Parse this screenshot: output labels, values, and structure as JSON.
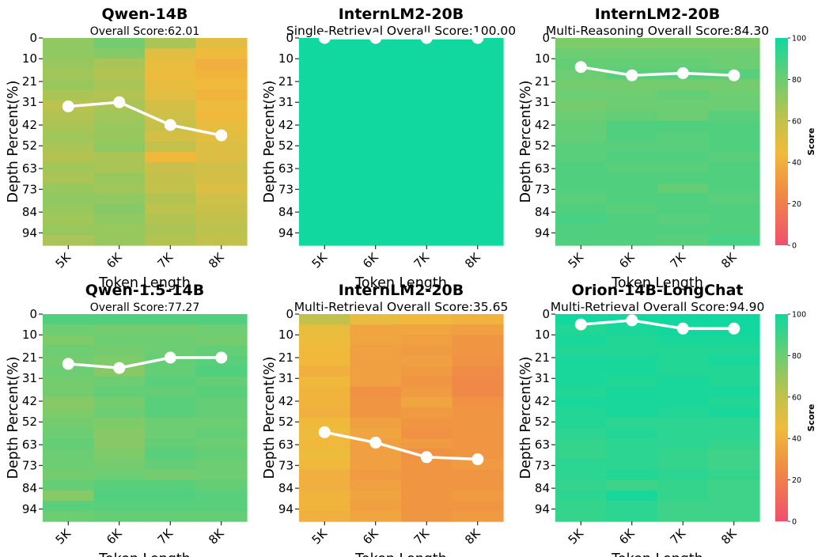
{
  "chart_data": [
    {
      "type": "heatmap",
      "title": "Qwen-14B",
      "subtitle": "Overall Score:62.01",
      "xlabel": "Token Length",
      "ylabel": "Depth Percent(%)",
      "x_categories": [
        "5K",
        "6K",
        "7K",
        "8K"
      ],
      "y_tick_labels": [
        "0",
        "10",
        "21",
        "31",
        "42",
        "52",
        "63",
        "73",
        "84",
        "94"
      ],
      "color_range": [
        0,
        100
      ],
      "line_series": [
        {
          "x": "5K",
          "y_depth": 33,
          "score": 62
        },
        {
          "x": "6K",
          "y_depth": 31,
          "score": 66
        },
        {
          "x": "7K",
          "y_depth": 42,
          "score": 60
        },
        {
          "x": "8K",
          "y_depth": 47,
          "score": 55
        }
      ],
      "cells": [
        [
          72,
          78,
          66,
          50
        ],
        [
          72,
          74,
          50,
          45
        ],
        [
          70,
          66,
          48,
          40
        ],
        [
          68,
          64,
          46,
          42
        ],
        [
          70,
          66,
          48,
          44
        ],
        [
          66,
          64,
          50,
          42
        ],
        [
          62,
          66,
          54,
          46
        ],
        [
          64,
          68,
          56,
          44
        ],
        [
          66,
          70,
          58,
          48
        ],
        [
          68,
          70,
          54,
          50
        ],
        [
          66,
          72,
          60,
          52
        ],
        [
          64,
          66,
          44,
          52
        ],
        [
          68,
          66,
          58,
          56
        ],
        [
          66,
          70,
          60,
          54
        ],
        [
          70,
          68,
          60,
          52
        ],
        [
          72,
          72,
          64,
          56
        ],
        [
          70,
          74,
          62,
          58
        ],
        [
          68,
          72,
          64,
          60
        ],
        [
          70,
          70,
          66,
          62
        ],
        [
          66,
          70,
          64,
          60
        ]
      ]
    },
    {
      "type": "heatmap",
      "title": "InternLM2-20B",
      "subtitle": "Single-Retrieval Overall Score:100.00",
      "xlabel": "Token Length",
      "ylabel": "Depth Percent(%)",
      "x_categories": [
        "5K",
        "6K",
        "7K",
        "8K"
      ],
      "y_tick_labels": [
        "0",
        "10",
        "21",
        "31",
        "42",
        "52",
        "63",
        "73",
        "84",
        "94"
      ],
      "color_range": [
        0,
        100
      ],
      "line_series": [
        {
          "x": "5K",
          "y_depth": 0,
          "score": 100
        },
        {
          "x": "6K",
          "y_depth": 0,
          "score": 100
        },
        {
          "x": "7K",
          "y_depth": 0,
          "score": 100
        },
        {
          "x": "8K",
          "y_depth": 0,
          "score": 100
        }
      ],
      "cells": [
        [
          100,
          100,
          100,
          100
        ],
        [
          100,
          100,
          100,
          100
        ],
        [
          100,
          100,
          100,
          100
        ],
        [
          100,
          100,
          100,
          100
        ],
        [
          100,
          100,
          100,
          100
        ],
        [
          100,
          100,
          100,
          100
        ],
        [
          100,
          100,
          100,
          100
        ],
        [
          100,
          100,
          100,
          100
        ],
        [
          100,
          100,
          100,
          100
        ],
        [
          100,
          100,
          100,
          100
        ],
        [
          100,
          100,
          100,
          100
        ],
        [
          100,
          100,
          100,
          100
        ],
        [
          100,
          100,
          100,
          100
        ],
        [
          100,
          100,
          100,
          100
        ],
        [
          100,
          100,
          100,
          100
        ],
        [
          100,
          100,
          100,
          100
        ],
        [
          100,
          100,
          100,
          100
        ],
        [
          100,
          100,
          100,
          100
        ],
        [
          100,
          100,
          100,
          100
        ],
        [
          100,
          100,
          100,
          100
        ]
      ]
    },
    {
      "type": "heatmap",
      "title": "InternLM2-20B",
      "subtitle": "Multi-Reasoning Overall Score:84.30",
      "xlabel": "Token Length",
      "ylabel": "Depth Percent(%)",
      "x_categories": [
        "5K",
        "6K",
        "7K",
        "8K"
      ],
      "y_tick_labels": [
        "0",
        "10",
        "21",
        "31",
        "42",
        "52",
        "63",
        "73",
        "84",
        "94"
      ],
      "color_range": [
        0,
        100
      ],
      "colorbar": {
        "label": "Score",
        "ticks": [
          0,
          20,
          40,
          60,
          80,
          100
        ]
      },
      "line_series": [
        {
          "x": "5K",
          "y_depth": 14,
          "score": 87
        },
        {
          "x": "6K",
          "y_depth": 18,
          "score": 83
        },
        {
          "x": "7K",
          "y_depth": 17,
          "score": 84
        },
        {
          "x": "8K",
          "y_depth": 18,
          "score": 83
        }
      ],
      "cells": [
        [
          76,
          76,
          76,
          76
        ],
        [
          80,
          80,
          80,
          80
        ],
        [
          82,
          82,
          82,
          80
        ],
        [
          80,
          84,
          84,
          84
        ],
        [
          78,
          78,
          78,
          78
        ],
        [
          80,
          80,
          82,
          80
        ],
        [
          78,
          80,
          80,
          80
        ],
        [
          80,
          82,
          80,
          84
        ],
        [
          82,
          86,
          86,
          86
        ],
        [
          82,
          86,
          84,
          86
        ],
        [
          84,
          84,
          84,
          86
        ],
        [
          84,
          86,
          86,
          84
        ],
        [
          86,
          84,
          84,
          86
        ],
        [
          86,
          86,
          86,
          86
        ],
        [
          86,
          86,
          82,
          86
        ],
        [
          84,
          86,
          86,
          84
        ],
        [
          86,
          84,
          86,
          86
        ],
        [
          88,
          86,
          84,
          86
        ],
        [
          86,
          86,
          86,
          86
        ],
        [
          86,
          86,
          84,
          88
        ]
      ]
    },
    {
      "type": "heatmap",
      "title": "Qwen-1.5-14B",
      "subtitle": "Overall Score:77.27",
      "xlabel": "Token Length",
      "ylabel": "Depth Percent(%)",
      "x_categories": [
        "5K",
        "6K",
        "7K",
        "8K"
      ],
      "y_tick_labels": [
        "0",
        "10",
        "21",
        "31",
        "42",
        "52",
        "63",
        "73",
        "84",
        "94"
      ],
      "color_range": [
        0,
        100
      ],
      "line_series": [
        {
          "x": "5K",
          "y_depth": 24,
          "score": 77
        },
        {
          "x": "6K",
          "y_depth": 26,
          "score": 75
        },
        {
          "x": "7K",
          "y_depth": 21,
          "score": 79
        },
        {
          "x": "8K",
          "y_depth": 21,
          "score": 79
        }
      ],
      "cells": [
        [
          86,
          86,
          86,
          86
        ],
        [
          80,
          78,
          78,
          80
        ],
        [
          76,
          80,
          80,
          78
        ],
        [
          80,
          78,
          80,
          82
        ],
        [
          78,
          76,
          82,
          84
        ],
        [
          80,
          74,
          82,
          86
        ],
        [
          78,
          80,
          84,
          82
        ],
        [
          78,
          82,
          82,
          84
        ],
        [
          74,
          78,
          84,
          82
        ],
        [
          76,
          80,
          84,
          82
        ],
        [
          78,
          76,
          80,
          80
        ],
        [
          80,
          74,
          80,
          82
        ],
        [
          82,
          74,
          82,
          80
        ],
        [
          80,
          76,
          84,
          82
        ],
        [
          80,
          78,
          82,
          80
        ],
        [
          78,
          80,
          78,
          80
        ],
        [
          82,
          84,
          84,
          82
        ],
        [
          74,
          86,
          86,
          84
        ],
        [
          84,
          84,
          84,
          84
        ],
        [
          80,
          82,
          82,
          82
        ]
      ]
    },
    {
      "type": "heatmap",
      "title": "InternLM2-20B",
      "subtitle": "Multi-Retrieval Overall Score:35.65",
      "xlabel": "Token Length",
      "ylabel": "Depth Percent(%)",
      "x_categories": [
        "5K",
        "6K",
        "7K",
        "8K"
      ],
      "y_tick_labels": [
        "0",
        "10",
        "21",
        "31",
        "42",
        "52",
        "63",
        "73",
        "84",
        "94"
      ],
      "color_range": [
        0,
        100
      ],
      "line_series": [
        {
          "x": "5K",
          "y_depth": 57,
          "score": 42
        },
        {
          "x": "6K",
          "y_depth": 62,
          "score": 38
        },
        {
          "x": "7K",
          "y_depth": 69,
          "score": 32
        },
        {
          "x": "8K",
          "y_depth": 70,
          "score": 31
        }
      ],
      "cells": [
        [
          60,
          48,
          44,
          42
        ],
        [
          48,
          36,
          36,
          34
        ],
        [
          46,
          36,
          34,
          30
        ],
        [
          44,
          34,
          32,
          30
        ],
        [
          44,
          34,
          34,
          28
        ],
        [
          40,
          34,
          32,
          26
        ],
        [
          44,
          34,
          30,
          24
        ],
        [
          42,
          28,
          32,
          24
        ],
        [
          42,
          30,
          36,
          28
        ],
        [
          40,
          30,
          32,
          30
        ],
        [
          44,
          34,
          30,
          30
        ],
        [
          46,
          36,
          28,
          30
        ],
        [
          44,
          34,
          32,
          30
        ],
        [
          46,
          34,
          28,
          30
        ],
        [
          44,
          34,
          30,
          32
        ],
        [
          40,
          32,
          30,
          30
        ],
        [
          40,
          34,
          30,
          30
        ],
        [
          42,
          36,
          30,
          32
        ],
        [
          42,
          34,
          30,
          30
        ],
        [
          40,
          36,
          30,
          32
        ]
      ]
    },
    {
      "type": "heatmap",
      "title": "Orion-14B-LongChat",
      "subtitle": "Multi-Retrieval Overall Score:94.90",
      "xlabel": "Token Length",
      "ylabel": "Depth Percent(%)",
      "x_categories": [
        "5K",
        "6K",
        "7K",
        "8K"
      ],
      "y_tick_labels": [
        "0",
        "10",
        "21",
        "31",
        "42",
        "52",
        "63",
        "73",
        "84",
        "94"
      ],
      "color_range": [
        0,
        100
      ],
      "colorbar": {
        "label": "Score",
        "ticks": [
          0,
          20,
          40,
          60,
          80,
          100
        ]
      },
      "line_series": [
        {
          "x": "5K",
          "y_depth": 5,
          "score": 96
        },
        {
          "x": "6K",
          "y_depth": 3,
          "score": 97
        },
        {
          "x": "7K",
          "y_depth": 7,
          "score": 94
        },
        {
          "x": "8K",
          "y_depth": 7,
          "score": 94
        }
      ],
      "cells": [
        [
          100,
          100,
          100,
          100
        ],
        [
          96,
          98,
          100,
          100
        ],
        [
          98,
          96,
          98,
          98
        ],
        [
          96,
          96,
          96,
          96
        ],
        [
          98,
          98,
          96,
          98
        ],
        [
          98,
          98,
          96,
          96
        ],
        [
          98,
          96,
          98,
          96
        ],
        [
          96,
          98,
          98,
          98
        ],
        [
          98,
          98,
          98,
          96
        ],
        [
          96,
          98,
          96,
          98
        ],
        [
          96,
          94,
          94,
          94
        ],
        [
          94,
          96,
          94,
          94
        ],
        [
          92,
          94,
          94,
          92
        ],
        [
          92,
          94,
          92,
          90
        ],
        [
          94,
          94,
          92,
          90
        ],
        [
          94,
          96,
          94,
          92
        ],
        [
          92,
          90,
          92,
          90
        ],
        [
          94,
          98,
          92,
          90
        ],
        [
          92,
          94,
          90,
          90
        ],
        [
          92,
          94,
          90,
          90
        ]
      ]
    }
  ]
}
